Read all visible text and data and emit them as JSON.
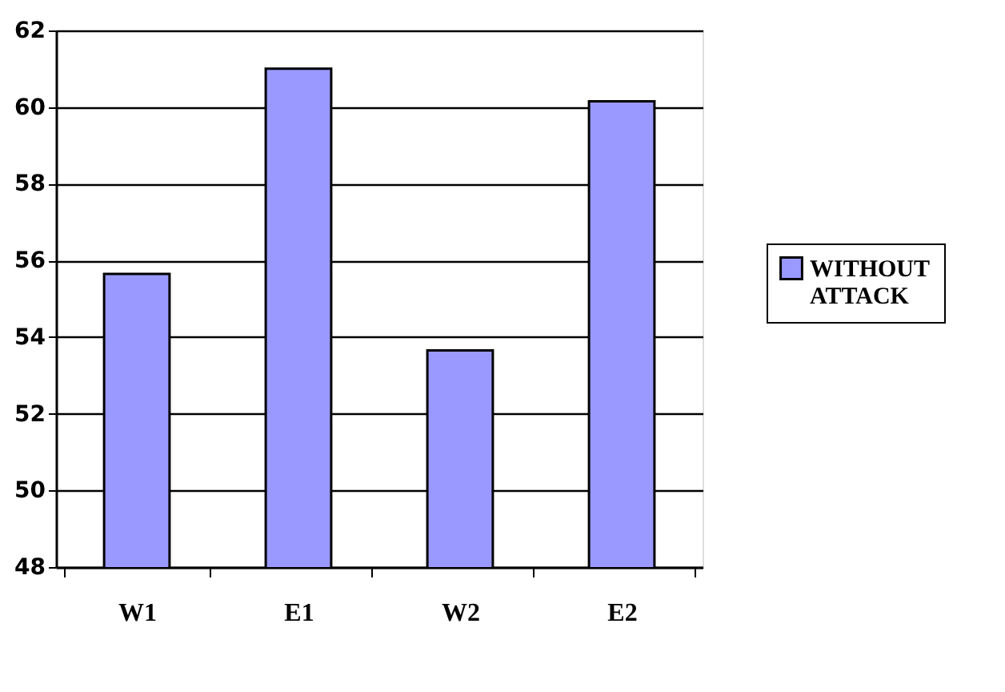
{
  "chart_data": {
    "type": "bar",
    "categories": [
      "W1",
      "E1",
      "W2",
      "E2"
    ],
    "series": [
      {
        "name": "WITHOUT ATTACK",
        "color": "#9999ff",
        "values": [
          55.65,
          61.0,
          53.65,
          60.15
        ]
      }
    ],
    "ylim": [
      48,
      62
    ],
    "yticks": [
      48,
      50,
      52,
      54,
      56,
      58,
      60,
      62
    ],
    "grid": "y",
    "legend": "right"
  }
}
